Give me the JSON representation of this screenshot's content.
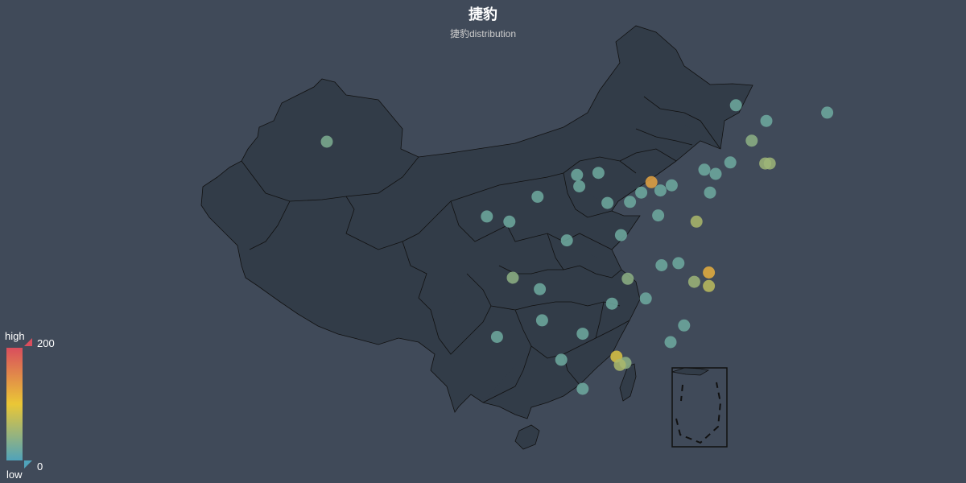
{
  "title": "捷豹",
  "subtitle": "捷豹distribution",
  "legend": {
    "high_label": "high",
    "low_label": "low",
    "max": "200",
    "min": "0"
  },
  "colors": {
    "background": "#404a59",
    "land": "#323c48",
    "border": "#111111",
    "scale_high": "#d94e5d",
    "scale_mid": "#eac736",
    "scale_low": "#50a3ba"
  },
  "chart_data": {
    "type": "scatter",
    "map": "china",
    "visual_map": {
      "min": 0,
      "max": 200,
      "colors": [
        "#50a3ba",
        "#eac736",
        "#d94e5d"
      ]
    },
    "series": [
      {
        "name": "捷豹",
        "points": [
          {
            "lon": 87.6,
            "lat": 43.8,
            "value": 30
          },
          {
            "lon": 126.6,
            "lat": 45.8,
            "value": 20
          },
          {
            "lon": 123.9,
            "lat": 47.3,
            "value": 20
          },
          {
            "lon": 125.3,
            "lat": 43.9,
            "value": 40
          },
          {
            "lon": 132.0,
            "lat": 46.6,
            "value": 20
          },
          {
            "lon": 126.5,
            "lat": 41.7,
            "value": 50
          },
          {
            "lon": 126.9,
            "lat": 41.7,
            "value": 50
          },
          {
            "lon": 123.4,
            "lat": 41.8,
            "value": 20
          },
          {
            "lon": 121.6,
            "lat": 38.9,
            "value": 20
          },
          {
            "lon": 122.1,
            "lat": 40.7,
            "value": 20
          },
          {
            "lon": 121.1,
            "lat": 41.1,
            "value": 20
          },
          {
            "lon": 116.4,
            "lat": 39.9,
            "value": 130
          },
          {
            "lon": 117.2,
            "lat": 39.1,
            "value": 20
          },
          {
            "lon": 114.5,
            "lat": 38.0,
            "value": 20
          },
          {
            "lon": 115.5,
            "lat": 38.9,
            "value": 20
          },
          {
            "lon": 118.2,
            "lat": 39.6,
            "value": 20
          },
          {
            "lon": 112.5,
            "lat": 37.9,
            "value": 20
          },
          {
            "lon": 111.7,
            "lat": 40.8,
            "value": 20
          },
          {
            "lon": 109.8,
            "lat": 40.6,
            "value": 20
          },
          {
            "lon": 110.0,
            "lat": 39.5,
            "value": 20
          },
          {
            "lon": 113.7,
            "lat": 34.8,
            "value": 20
          },
          {
            "lon": 114.3,
            "lat": 30.6,
            "value": 40
          },
          {
            "lon": 112.9,
            "lat": 28.2,
            "value": 20
          },
          {
            "lon": 113.3,
            "lat": 23.1,
            "value": 90
          },
          {
            "lon": 114.1,
            "lat": 22.5,
            "value": 40
          },
          {
            "lon": 113.6,
            "lat": 22.3,
            "value": 60
          },
          {
            "lon": 110.3,
            "lat": 25.3,
            "value": 20
          },
          {
            "lon": 108.4,
            "lat": 22.8,
            "value": 20
          },
          {
            "lon": 104.1,
            "lat": 30.7,
            "value": 40
          },
          {
            "lon": 106.5,
            "lat": 29.6,
            "value": 20
          },
          {
            "lon": 106.7,
            "lat": 26.6,
            "value": 20
          },
          {
            "lon": 102.7,
            "lat": 25.0,
            "value": 20
          },
          {
            "lon": 108.9,
            "lat": 34.3,
            "value": 20
          },
          {
            "lon": 103.8,
            "lat": 36.1,
            "value": 20
          },
          {
            "lon": 106.3,
            "lat": 38.5,
            "value": 20
          },
          {
            "lon": 101.8,
            "lat": 36.6,
            "value": 20
          },
          {
            "lon": 117.0,
            "lat": 36.7,
            "value": 20
          },
          {
            "lon": 120.4,
            "lat": 36.1,
            "value": 60
          },
          {
            "lon": 118.8,
            "lat": 32.1,
            "value": 20
          },
          {
            "lon": 121.5,
            "lat": 31.2,
            "value": 120
          },
          {
            "lon": 120.2,
            "lat": 30.3,
            "value": 50
          },
          {
            "lon": 121.5,
            "lat": 29.9,
            "value": 70
          },
          {
            "lon": 117.3,
            "lat": 31.9,
            "value": 20
          },
          {
            "lon": 119.3,
            "lat": 26.1,
            "value": 20
          },
          {
            "lon": 118.1,
            "lat": 24.5,
            "value": 20
          },
          {
            "lon": 115.9,
            "lat": 28.7,
            "value": 20
          },
          {
            "lon": 110.3,
            "lat": 20.0,
            "value": 20
          }
        ]
      }
    ]
  }
}
